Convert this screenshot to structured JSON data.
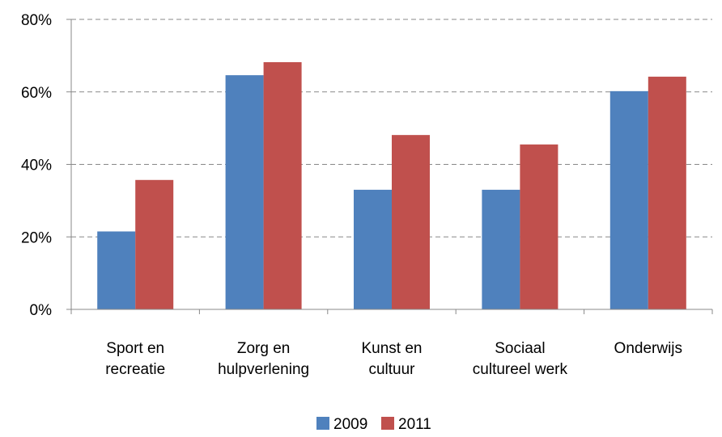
{
  "chart_data": {
    "type": "bar",
    "categories": [
      "Sport en\nrecreatie",
      "Zorg en\nhulpverlening",
      "Kunst en\ncultuur",
      "Sociaal\ncultureel werk",
      "Onderwijs"
    ],
    "series": [
      {
        "name": "2009",
        "color": "#4f81bd",
        "values": [
          21.5,
          64.6,
          33,
          33,
          60.2
        ]
      },
      {
        "name": "2011",
        "color": "#c0504d",
        "values": [
          35.7,
          68.2,
          48.1,
          45.5,
          64.2
        ]
      }
    ],
    "ylim": [
      0,
      80
    ],
    "yticks": [
      {
        "value": 0,
        "label": "0%"
      },
      {
        "value": 20,
        "label": "20%"
      },
      {
        "value": 40,
        "label": "40%"
      },
      {
        "value": 60,
        "label": "60%"
      },
      {
        "value": 80,
        "label": "80%"
      }
    ],
    "grid": true,
    "legend": "bottom"
  }
}
